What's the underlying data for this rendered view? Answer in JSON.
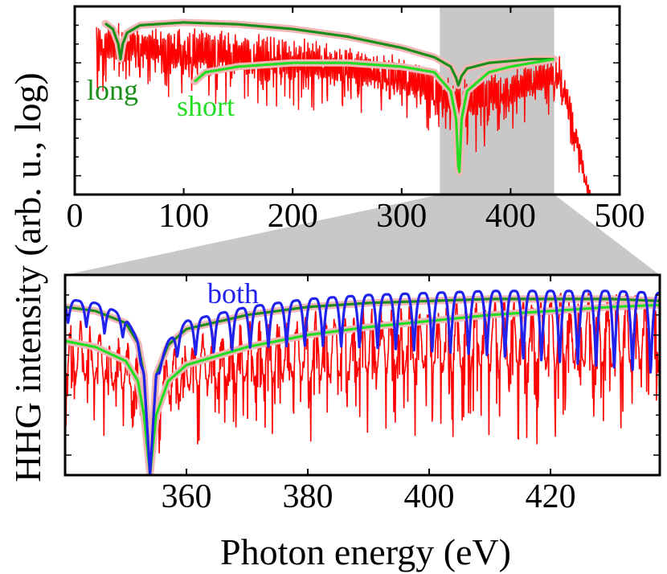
{
  "chart_data": [
    {
      "type": "line",
      "panel": "top",
      "xlabel": "",
      "ylabel": "HHG intensity (arb. u., log)",
      "xlim": [
        0,
        500
      ],
      "ylim": [
        0,
        1
      ],
      "x_ticks": [
        "0",
        "100",
        "200",
        "300",
        "400",
        "500"
      ],
      "highlight_region": [
        335,
        440
      ],
      "series": [
        {
          "name": "spectrum",
          "color": "#ff0000",
          "x": [
            20,
            40,
            60,
            80,
            100,
            150,
            200,
            250,
            300,
            330,
            350,
            370,
            400,
            430,
            445,
            455,
            470,
            480
          ],
          "envelope_upper": [
            0.94,
            0.92,
            0.9,
            0.88,
            0.9,
            0.87,
            0.84,
            0.8,
            0.74,
            0.68,
            0.6,
            0.66,
            0.66,
            0.72,
            0.74,
            0.55,
            0.1,
            -0.1
          ],
          "envelope_lower": [
            0.5,
            0.5,
            0.55,
            0.5,
            0.45,
            0.45,
            0.42,
            0.4,
            0.35,
            0.3,
            0.2,
            0.2,
            0.3,
            0.4,
            0.4,
            0.2,
            -0.1,
            -0.1
          ]
        },
        {
          "name": "long",
          "color": "#1a8f1a",
          "x": [
            28,
            35,
            40,
            42,
            44,
            48,
            60,
            100,
            150,
            200,
            250,
            300,
            330,
            345,
            350,
            352,
            355,
            360,
            380,
            400,
            420,
            440
          ],
          "y": [
            0.91,
            0.88,
            0.8,
            0.72,
            0.8,
            0.86,
            0.9,
            0.915,
            0.905,
            0.88,
            0.84,
            0.78,
            0.73,
            0.68,
            0.62,
            0.58,
            0.63,
            0.67,
            0.7,
            0.71,
            0.72,
            0.72
          ]
        },
        {
          "name": "short",
          "color": "#22dd22",
          "x": [
            110,
            120,
            150,
            200,
            250,
            300,
            330,
            345,
            350,
            352,
            353,
            355,
            360,
            380,
            400,
            420,
            440
          ],
          "y": [
            0.6,
            0.65,
            0.68,
            0.7,
            0.7,
            0.68,
            0.65,
            0.55,
            0.4,
            0.15,
            0.12,
            0.4,
            0.55,
            0.65,
            0.68,
            0.7,
            0.72
          ]
        }
      ],
      "annotations": [
        {
          "text": "long",
          "color": "#1a8f1a"
        },
        {
          "text": "short",
          "color": "#22dd22"
        }
      ]
    },
    {
      "type": "line",
      "panel": "bottom",
      "xlabel": "Photon energy (eV)",
      "ylabel": "HHG intensity (arb. u., log)",
      "xlim": [
        340,
        438
      ],
      "ylim": [
        0,
        1
      ],
      "x_ticks": [
        "360",
        "380",
        "400",
        "420"
      ],
      "series": [
        {
          "name": "spectrum",
          "color": "#ff0000",
          "x": [
            340,
            345,
            350,
            352,
            354,
            356,
            360,
            370,
            380,
            390,
            400,
            410,
            420,
            430,
            438
          ],
          "envelope_upper": [
            0.8,
            0.75,
            0.68,
            0.6,
            0.3,
            0.6,
            0.7,
            0.78,
            0.82,
            0.86,
            0.88,
            0.9,
            0.92,
            0.92,
            0.92
          ],
          "envelope_lower": [
            0.2,
            0.2,
            0.15,
            0.1,
            0.02,
            0.1,
            0.15,
            0.15,
            0.15,
            0.15,
            0.15,
            0.15,
            0.15,
            0.15,
            0.15
          ]
        },
        {
          "name": "long",
          "color": "#1a8f1a",
          "x": [
            340,
            345,
            350,
            352,
            353,
            354,
            355,
            357,
            360,
            370,
            380,
            390,
            400,
            410,
            420,
            430,
            438
          ],
          "y": [
            0.84,
            0.82,
            0.76,
            0.66,
            0.5,
            0.0,
            0.5,
            0.65,
            0.73,
            0.8,
            0.84,
            0.86,
            0.87,
            0.88,
            0.88,
            0.88,
            0.87
          ]
        },
        {
          "name": "short",
          "color": "#22dd22",
          "x": [
            340,
            345,
            350,
            352,
            353,
            354,
            355,
            357,
            360,
            370,
            380,
            390,
            400,
            410,
            420,
            430,
            438
          ],
          "y": [
            0.67,
            0.64,
            0.57,
            0.47,
            0.3,
            0.0,
            0.3,
            0.47,
            0.55,
            0.64,
            0.7,
            0.74,
            0.77,
            0.8,
            0.82,
            0.84,
            0.85
          ]
        },
        {
          "name": "both",
          "color": "#2222ee",
          "x_range": [
            340,
            438
          ],
          "center": 354,
          "oscillation_period": 3.0
        }
      ],
      "annotations": [
        {
          "text": "both",
          "color": "#2222ee"
        }
      ]
    }
  ],
  "colors": {
    "spectrum": "#ff0000",
    "long": "#1a8f1a",
    "short": "#22dd22",
    "both": "#2222ee",
    "highlight": "#c8c8c8",
    "halo": "#f2b8b8"
  }
}
